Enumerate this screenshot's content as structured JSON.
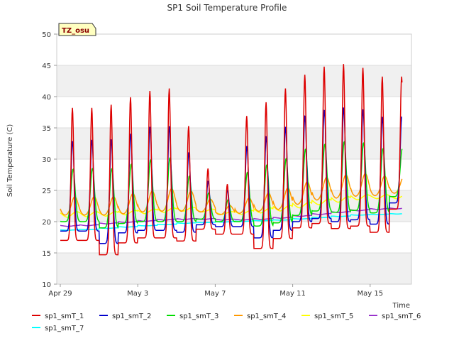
{
  "chart_data": {
    "type": "line",
    "title": "SP1 Soil Temperature Profile",
    "xlabel": "Time",
    "ylabel": "Soil Temperature (C)",
    "ylim": [
      10,
      50
    ],
    "xlim_days": [
      0,
      18
    ],
    "yticks": [
      10,
      15,
      20,
      25,
      30,
      35,
      40,
      45,
      50
    ],
    "xticks": [
      {
        "day": 0,
        "label": "Apr 29"
      },
      {
        "day": 4,
        "label": "May 3"
      },
      {
        "day": 8,
        "label": "May 7"
      },
      {
        "day": 12,
        "label": "May 11"
      },
      {
        "day": 16,
        "label": "May 15"
      }
    ],
    "site_badge": "TZ_osu",
    "grid": true,
    "legend_position": "bottom",
    "series": [
      {
        "name": "sp1_smT_1",
        "color": "#dd0000",
        "phase": 0.625,
        "width": 0.18,
        "lag": 0,
        "min": [
          17.0,
          17.0,
          14.7,
          16.6,
          17.4,
          17.4,
          16.9,
          18.8,
          18.0,
          18.0,
          15.7,
          17.3,
          19.0,
          19.7,
          18.9,
          19.3,
          18.3,
          22.0
        ],
        "max": [
          38.2,
          38.2,
          38.7,
          39.9,
          40.9,
          41.3,
          35.3,
          28.5,
          26.0,
          36.9,
          39.1,
          41.3,
          43.5,
          44.8,
          45.2,
          44.6,
          43.2,
          43.2
        ]
      },
      {
        "name": "sp1_smT_2",
        "color": "#0000cc",
        "phase": 0.635,
        "width": 0.22,
        "lag": 0,
        "min": [
          18.5,
          18.5,
          16.5,
          18.2,
          18.6,
          18.6,
          18.3,
          19.5,
          19.2,
          19.2,
          17.4,
          18.6,
          20.0,
          20.5,
          20.0,
          20.3,
          19.6,
          23.0
        ],
        "max": [
          32.9,
          33.1,
          33.2,
          34.1,
          35.2,
          35.3,
          31.1,
          26.5,
          25.1,
          32.1,
          33.7,
          35.2,
          37.0,
          37.9,
          38.3,
          38.0,
          36.8,
          36.8
        ]
      },
      {
        "name": "sp1_smT_3",
        "color": "#00dd00",
        "phase": 0.66,
        "width": 0.28,
        "lag": 0,
        "min": [
          20.0,
          20.0,
          19.0,
          19.7,
          20.0,
          20.0,
          20.0,
          20.4,
          20.0,
          20.0,
          19.3,
          19.8,
          21.0,
          21.7,
          21.5,
          21.8,
          21.4,
          24.0
        ],
        "max": [
          28.4,
          28.5,
          28.5,
          29.2,
          29.9,
          30.2,
          27.3,
          24.6,
          23.5,
          27.9,
          29.1,
          30.1,
          31.6,
          32.4,
          32.8,
          32.6,
          31.7,
          31.7
        ]
      },
      {
        "name": "sp1_smT_4",
        "color": "#ff9900",
        "phase": 0.75,
        "width": 0.45,
        "lag": 0,
        "min": [
          21.0,
          21.0,
          21.0,
          21.2,
          21.5,
          21.6,
          21.6,
          21.5,
          21.1,
          21.3,
          21.6,
          21.9,
          22.7,
          23.4,
          23.7,
          24.0,
          24.1,
          24.5
        ],
        "max": [
          24.0,
          24.0,
          24.0,
          24.5,
          24.9,
          25.3,
          24.9,
          23.6,
          22.6,
          23.8,
          24.6,
          25.4,
          26.4,
          27.1,
          27.5,
          27.7,
          27.3,
          27.3
        ]
      },
      {
        "name": "sp1_smT_5",
        "color": "#ffff00",
        "phase": 0.85,
        "width": 0.6,
        "lag": 0,
        "min": [
          20.6,
          20.7,
          20.8,
          21.0,
          21.2,
          21.4,
          21.6,
          21.5,
          21.1,
          21.1,
          21.3,
          21.6,
          22.1,
          22.6,
          23.0,
          23.4,
          23.6,
          23.6
        ],
        "max": [
          21.6,
          21.6,
          21.6,
          21.8,
          22.0,
          22.2,
          22.3,
          22.0,
          21.6,
          21.8,
          22.2,
          22.6,
          23.1,
          23.6,
          24.0,
          24.3,
          24.3,
          24.3
        ]
      },
      {
        "name": "sp1_smT_6",
        "color": "#9933cc",
        "phase": 0.9,
        "width": 0.7,
        "lag": 0,
        "min": [
          19.2,
          19.3,
          19.6,
          19.8,
          20.0,
          20.2,
          20.3,
          20.3,
          20.2,
          20.2,
          20.3,
          20.5,
          20.8,
          21.1,
          21.4,
          21.7,
          21.9,
          22.0
        ],
        "max": [
          19.4,
          19.5,
          19.8,
          20.0,
          20.2,
          20.4,
          20.5,
          20.5,
          20.4,
          20.4,
          20.5,
          20.7,
          21.0,
          21.3,
          21.6,
          21.9,
          22.1,
          22.2
        ]
      },
      {
        "name": "sp1_smT_7",
        "color": "#00ffff",
        "phase": 0.9,
        "width": 0.7,
        "lag": 0,
        "min": [
          18.6,
          18.7,
          18.9,
          19.1,
          19.3,
          19.5,
          19.7,
          19.8,
          19.9,
          20.0,
          20.1,
          20.2,
          20.4,
          20.6,
          20.8,
          21.0,
          21.1,
          21.2
        ],
        "max": [
          18.7,
          18.8,
          19.0,
          19.2,
          19.4,
          19.6,
          19.8,
          19.9,
          20.0,
          20.1,
          20.2,
          20.3,
          20.5,
          20.7,
          20.9,
          21.1,
          21.2,
          21.3
        ]
      }
    ]
  }
}
